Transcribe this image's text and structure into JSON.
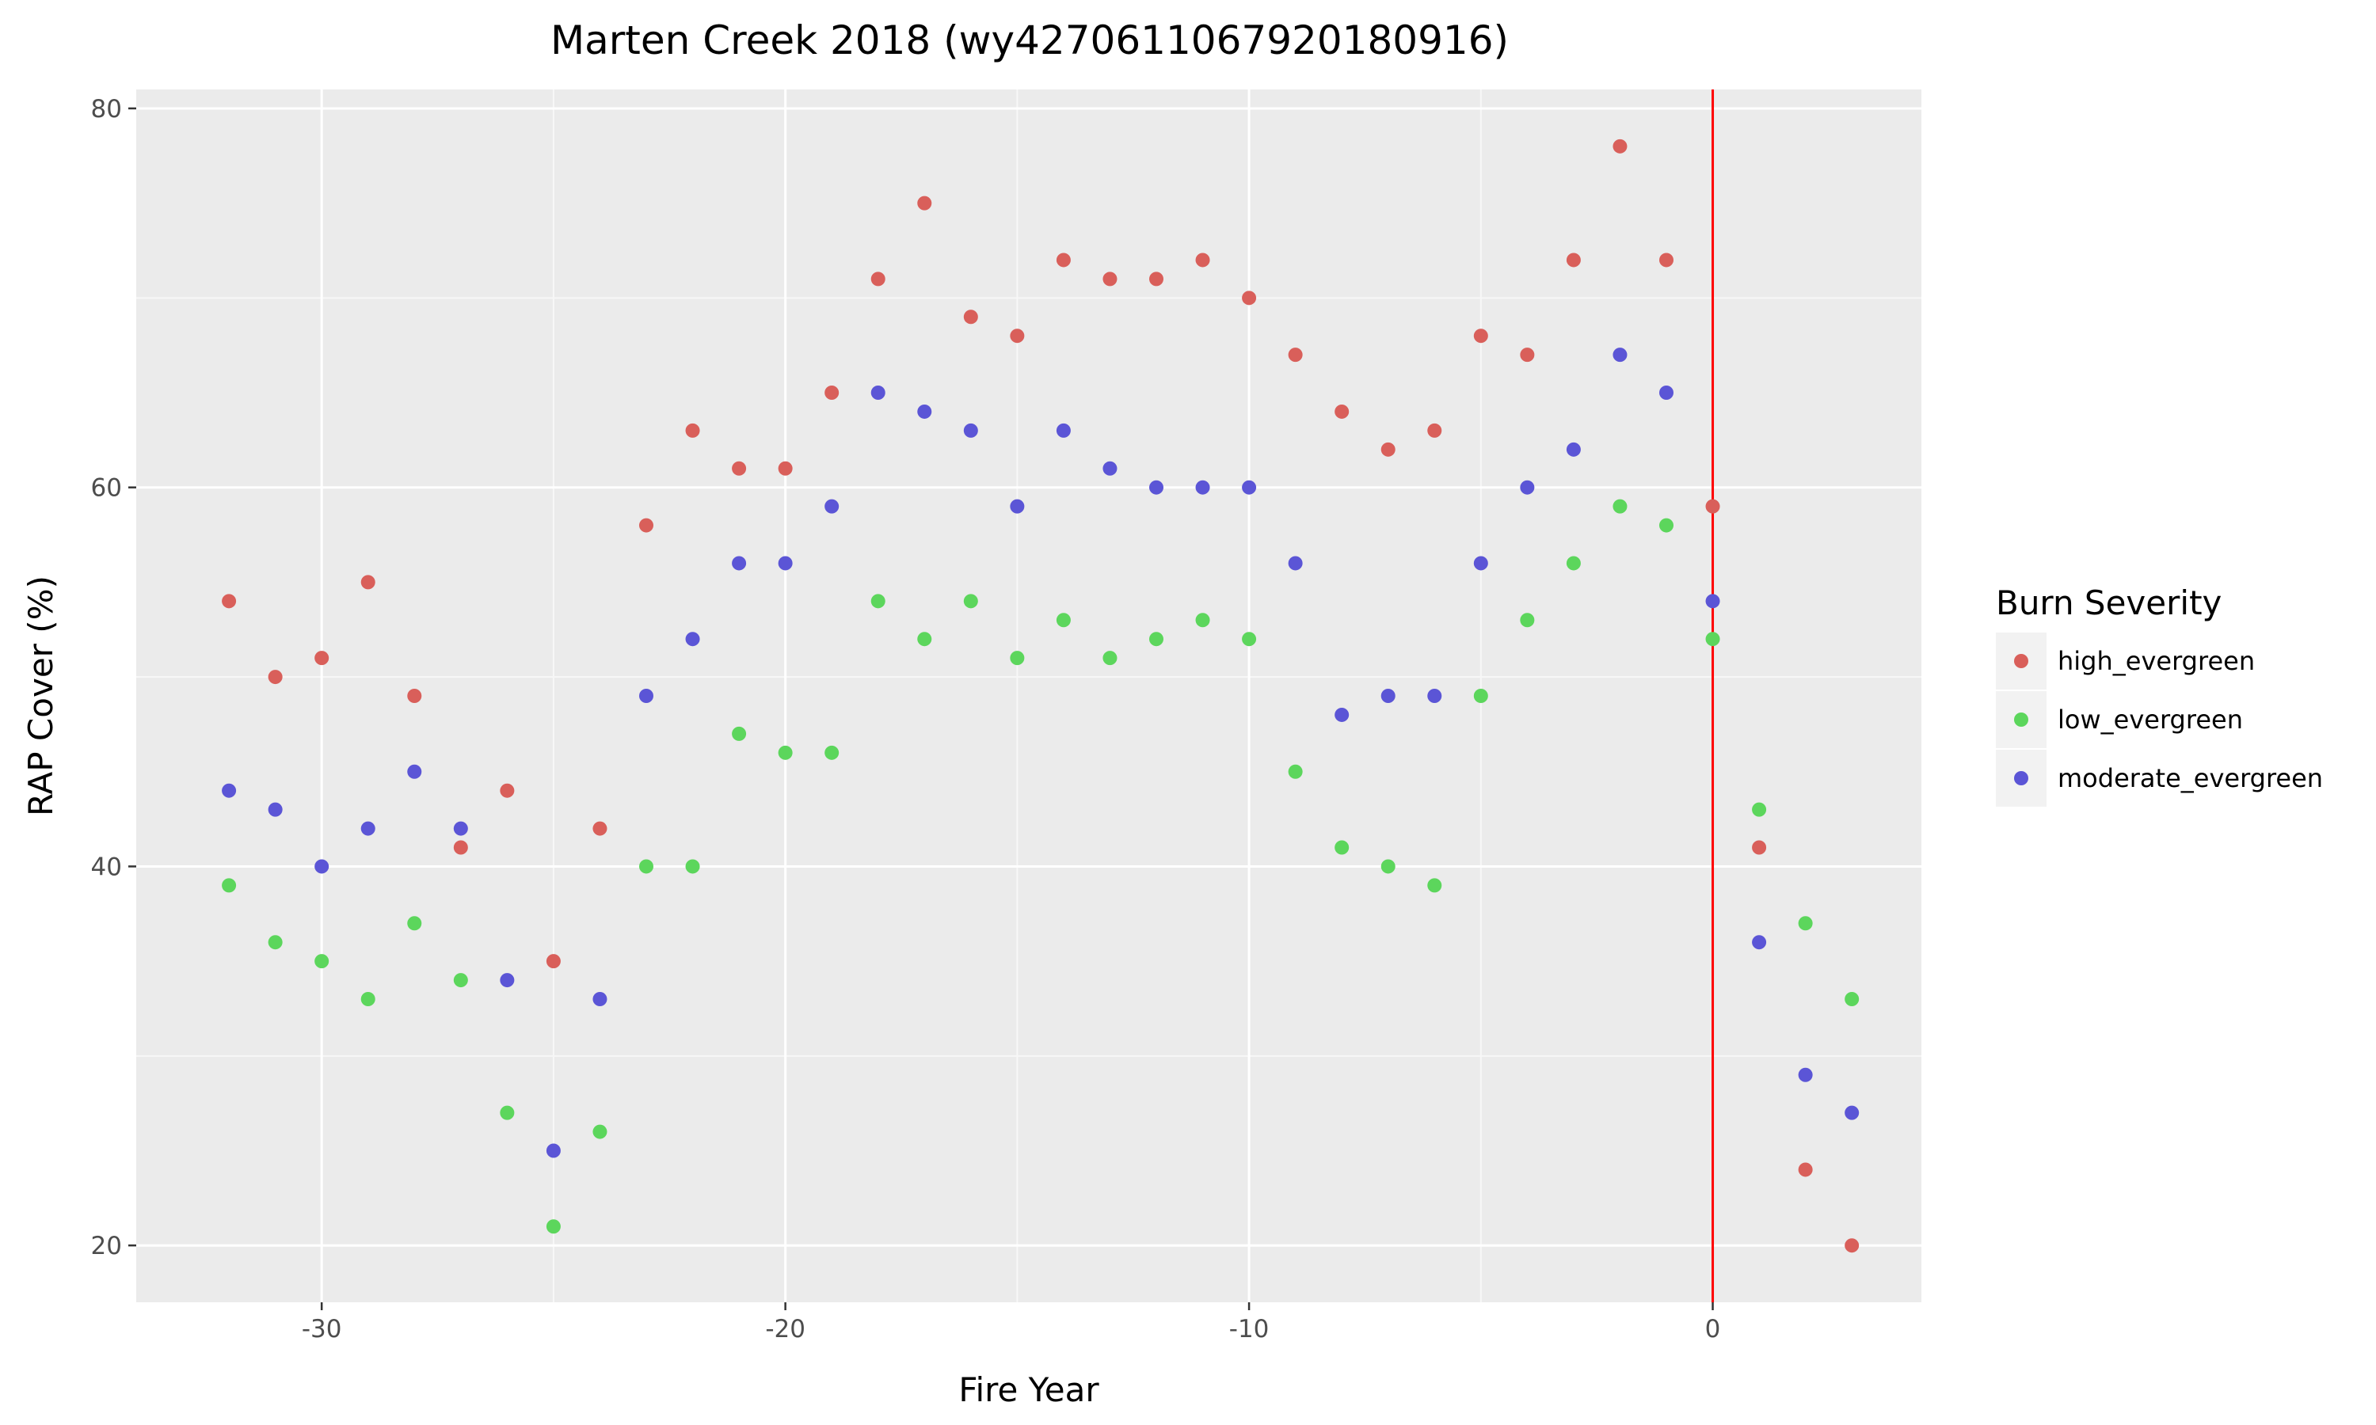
{
  "chart_data": {
    "type": "scatter",
    "title": "Marten Creek 2018 (wy4270611067920180916)",
    "xlabel": "Fire Year",
    "ylabel": "RAP Cover (%)",
    "xlim": [
      -34,
      4.5
    ],
    "ylim": [
      17,
      81
    ],
    "x_ticks": [
      -30,
      -20,
      -10,
      0
    ],
    "y_ticks": [
      20,
      40,
      60,
      80
    ],
    "vline": {
      "x": 0,
      "color": "#ff0000"
    },
    "grid": true,
    "legend": {
      "title": "Burn Severity",
      "position": "right"
    },
    "series": [
      {
        "name": "high_evergreen",
        "color": "#d95f5a",
        "points": [
          [
            -32,
            54
          ],
          [
            -31,
            50
          ],
          [
            -30,
            51
          ],
          [
            -29,
            55
          ],
          [
            -28,
            49
          ],
          [
            -27,
            41
          ],
          [
            -26,
            44
          ],
          [
            -25,
            35
          ],
          [
            -24,
            42
          ],
          [
            -23,
            58
          ],
          [
            -22,
            63
          ],
          [
            -21,
            61
          ],
          [
            -20,
            61
          ],
          [
            -19,
            65
          ],
          [
            -18,
            71
          ],
          [
            -17,
            75
          ],
          [
            -16,
            69
          ],
          [
            -15,
            68
          ],
          [
            -14,
            72
          ],
          [
            -13,
            71
          ],
          [
            -12,
            71
          ],
          [
            -11,
            72
          ],
          [
            -10,
            70
          ],
          [
            -9,
            67
          ],
          [
            -8,
            64
          ],
          [
            -7,
            62
          ],
          [
            -6,
            63
          ],
          [
            -5,
            68
          ],
          [
            -4,
            67
          ],
          [
            -3,
            72
          ],
          [
            -2,
            78
          ],
          [
            -1,
            72
          ],
          [
            0,
            59
          ],
          [
            1,
            41
          ],
          [
            2,
            24
          ],
          [
            3,
            20
          ]
        ]
      },
      {
        "name": "low_evergreen",
        "color": "#5cd65c",
        "points": [
          [
            -32,
            39
          ],
          [
            -31,
            36
          ],
          [
            -30,
            35
          ],
          [
            -29,
            33
          ],
          [
            -28,
            37
          ],
          [
            -27,
            34
          ],
          [
            -26,
            27
          ],
          [
            -25,
            21
          ],
          [
            -24,
            26
          ],
          [
            -23,
            40
          ],
          [
            -22,
            40
          ],
          [
            -21,
            47
          ],
          [
            -20,
            46
          ],
          [
            -19,
            46
          ],
          [
            -18,
            54
          ],
          [
            -17,
            52
          ],
          [
            -16,
            54
          ],
          [
            -15,
            51
          ],
          [
            -14,
            53
          ],
          [
            -13,
            51
          ],
          [
            -12,
            52
          ],
          [
            -11,
            53
          ],
          [
            -10,
            52
          ],
          [
            -9,
            45
          ],
          [
            -8,
            41
          ],
          [
            -7,
            40
          ],
          [
            -6,
            39
          ],
          [
            -5,
            49
          ],
          [
            -4,
            53
          ],
          [
            -3,
            56
          ],
          [
            -2,
            59
          ],
          [
            -1,
            58
          ],
          [
            0,
            52
          ],
          [
            1,
            43
          ],
          [
            2,
            37
          ],
          [
            3,
            33
          ]
        ]
      },
      {
        "name": "moderate_evergreen",
        "color": "#5b55d6",
        "points": [
          [
            -32,
            44
          ],
          [
            -31,
            43
          ],
          [
            -30,
            40
          ],
          [
            -29,
            42
          ],
          [
            -28,
            45
          ],
          [
            -27,
            42
          ],
          [
            -26,
            34
          ],
          [
            -25,
            25
          ],
          [
            -24,
            33
          ],
          [
            -23,
            49
          ],
          [
            -22,
            52
          ],
          [
            -21,
            56
          ],
          [
            -20,
            56
          ],
          [
            -19,
            59
          ],
          [
            -18,
            65
          ],
          [
            -17,
            64
          ],
          [
            -16,
            63
          ],
          [
            -15,
            59
          ],
          [
            -14,
            63
          ],
          [
            -13,
            61
          ],
          [
            -12,
            60
          ],
          [
            -11,
            60
          ],
          [
            -10,
            60
          ],
          [
            -9,
            56
          ],
          [
            -8,
            48
          ],
          [
            -7,
            49
          ],
          [
            -6,
            49
          ],
          [
            -5,
            56
          ],
          [
            -4,
            60
          ],
          [
            -3,
            62
          ],
          [
            -2,
            67
          ],
          [
            -1,
            65
          ],
          [
            0,
            54
          ],
          [
            1,
            36
          ],
          [
            2,
            29
          ],
          [
            3,
            27
          ]
        ]
      }
    ]
  }
}
